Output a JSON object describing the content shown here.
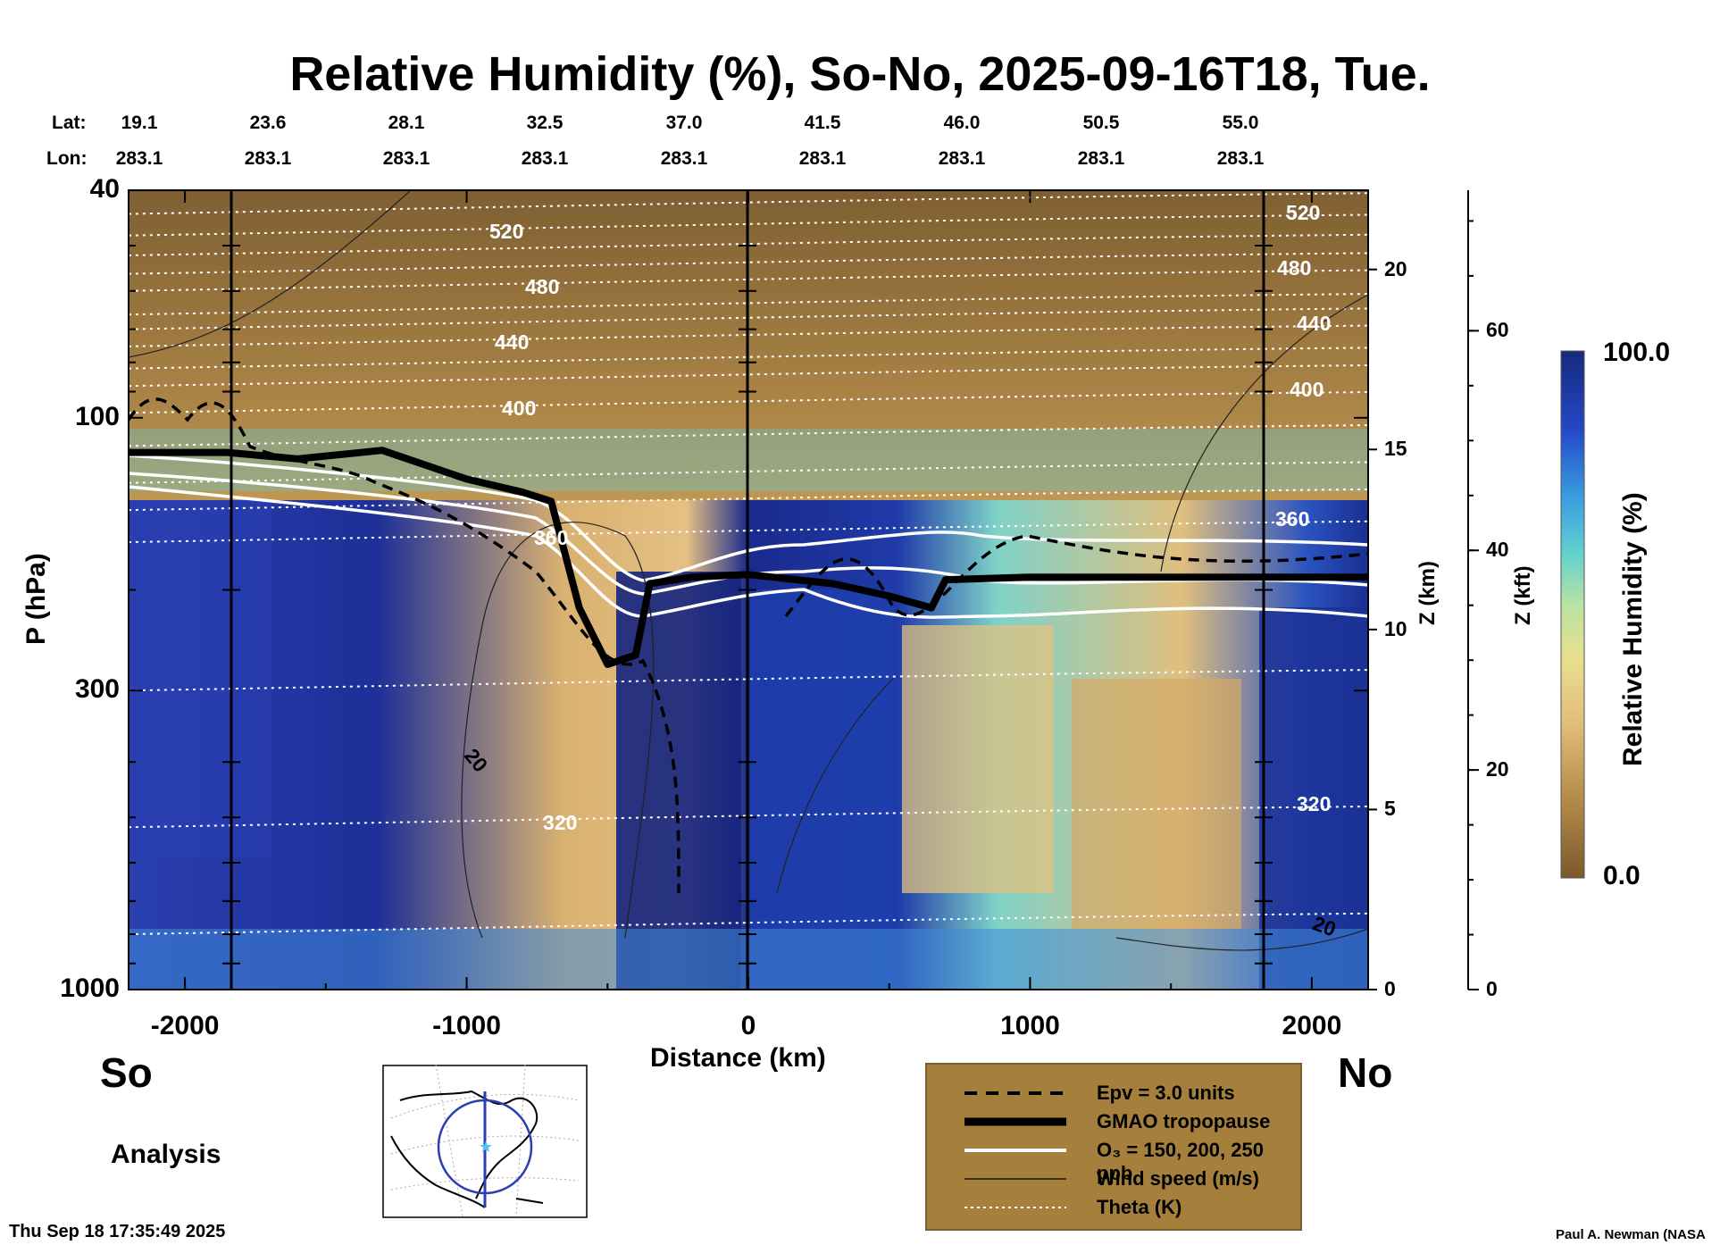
{
  "title": "Relative Humidity (%), So-No, 2025-09-16T18, Tue.",
  "header": {
    "lat_label": "Lat:",
    "lon_label": "Lon:",
    "lat_values": [
      "19.1",
      "23.6",
      "28.1",
      "32.5",
      "37.0",
      "41.5",
      "46.0",
      "50.5",
      "55.0"
    ],
    "lon_values": [
      "283.1",
      "283.1",
      "283.1",
      "283.1",
      "283.1",
      "283.1",
      "283.1",
      "283.1",
      "283.1"
    ]
  },
  "chart_data": {
    "type": "heatmap",
    "title": "Relative Humidity (%), So-No, 2025-09-16T18, Tue.",
    "xlabel": "Distance (km)",
    "ylabel": "P (hPa)",
    "y_scale": "log",
    "xlim": [
      -2200,
      2200
    ],
    "ylim": [
      1000,
      40
    ],
    "x_ticks": [
      "-2000",
      "-1000",
      "0",
      "1000",
      "2000"
    ],
    "x_tick_values": [
      -2000,
      -1000,
      0,
      1000,
      2000
    ],
    "y_ticks": [
      "40",
      "100",
      "300",
      "1000"
    ],
    "y_tick_values": [
      40,
      100,
      300,
      1000
    ],
    "z_km_label": "Z (km)",
    "z_km_ticks": [
      "20",
      "15",
      "10",
      "5",
      "0"
    ],
    "z_km_values": [
      20,
      15,
      10,
      5,
      0
    ],
    "z_kft_label": "Z (kft)",
    "z_kft_ticks": [
      "60",
      "40",
      "20",
      "0"
    ],
    "z_kft_values": [
      60,
      40,
      20,
      0
    ],
    "colorbar": {
      "label": "Relative Humidity (%)",
      "max_label": "100.0",
      "min_label": "0.0",
      "range": [
        0,
        100
      ]
    },
    "theta_contours": [
      {
        "label": "520",
        "value": 520
      },
      {
        "label": "480",
        "value": 480
      },
      {
        "label": "440",
        "value": 440
      },
      {
        "label": "400",
        "value": 400
      },
      {
        "label": "360",
        "value": 360
      },
      {
        "label": "320",
        "value": 320
      }
    ],
    "wind_contour_label": "20",
    "tropopause_pressure_hpa": [
      [
        -2200,
        115
      ],
      [
        -1850,
        115
      ],
      [
        -1600,
        118
      ],
      [
        -1300,
        114
      ],
      [
        -1000,
        128
      ],
      [
        -800,
        135
      ],
      [
        -700,
        140
      ],
      [
        -600,
        215
      ],
      [
        -500,
        270
      ],
      [
        -400,
        260
      ],
      [
        -350,
        195
      ],
      [
        -200,
        190
      ],
      [
        0,
        188
      ],
      [
        300,
        195
      ],
      [
        500,
        205
      ],
      [
        650,
        215
      ],
      [
        700,
        192
      ],
      [
        1000,
        190
      ],
      [
        1500,
        190
      ],
      [
        2200,
        190
      ]
    ],
    "colors": {
      "dry": "#7a5a2c",
      "moist": "#1b2f8a",
      "mid": "#4fc4d0"
    }
  },
  "labels": {
    "south": "So",
    "north": "No",
    "analysis": "Analysis"
  },
  "legend": {
    "items": [
      {
        "label": "Epv = 3.0 units",
        "style": "dashed"
      },
      {
        "label": "GMAO tropopause",
        "style": "thick"
      },
      {
        "label": "O₃ = 150, 200, 250 ppb",
        "style": "white"
      },
      {
        "label": "Wind speed (m/s)",
        "style": "thin"
      },
      {
        "label": "Theta (K)",
        "style": "dotted"
      }
    ]
  },
  "footer": {
    "timestamp": "Thu Sep 18 17:35:49 2025",
    "credit": "Paul A. Newman (NASA"
  }
}
